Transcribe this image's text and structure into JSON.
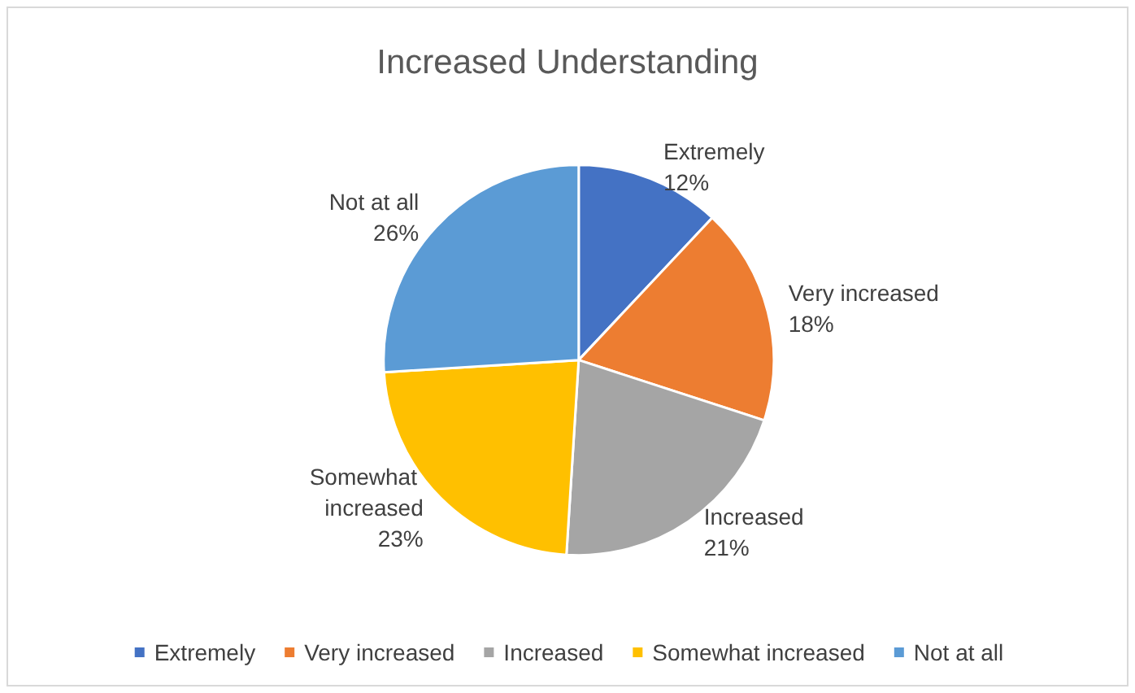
{
  "chart_data": {
    "type": "pie",
    "title": "Increased Understanding",
    "categories": [
      "Extremely",
      "Very increased",
      "Increased",
      "Somewhat increased",
      "Not at all"
    ],
    "values": [
      12,
      18,
      21,
      23,
      26
    ],
    "value_labels": [
      "12%",
      "18%",
      "21%",
      "23%",
      "26%"
    ],
    "colors": [
      "#4472c4",
      "#ed7d31",
      "#a5a5a5",
      "#ffc000",
      "#5b9bd5"
    ],
    "legend": "bottom"
  }
}
